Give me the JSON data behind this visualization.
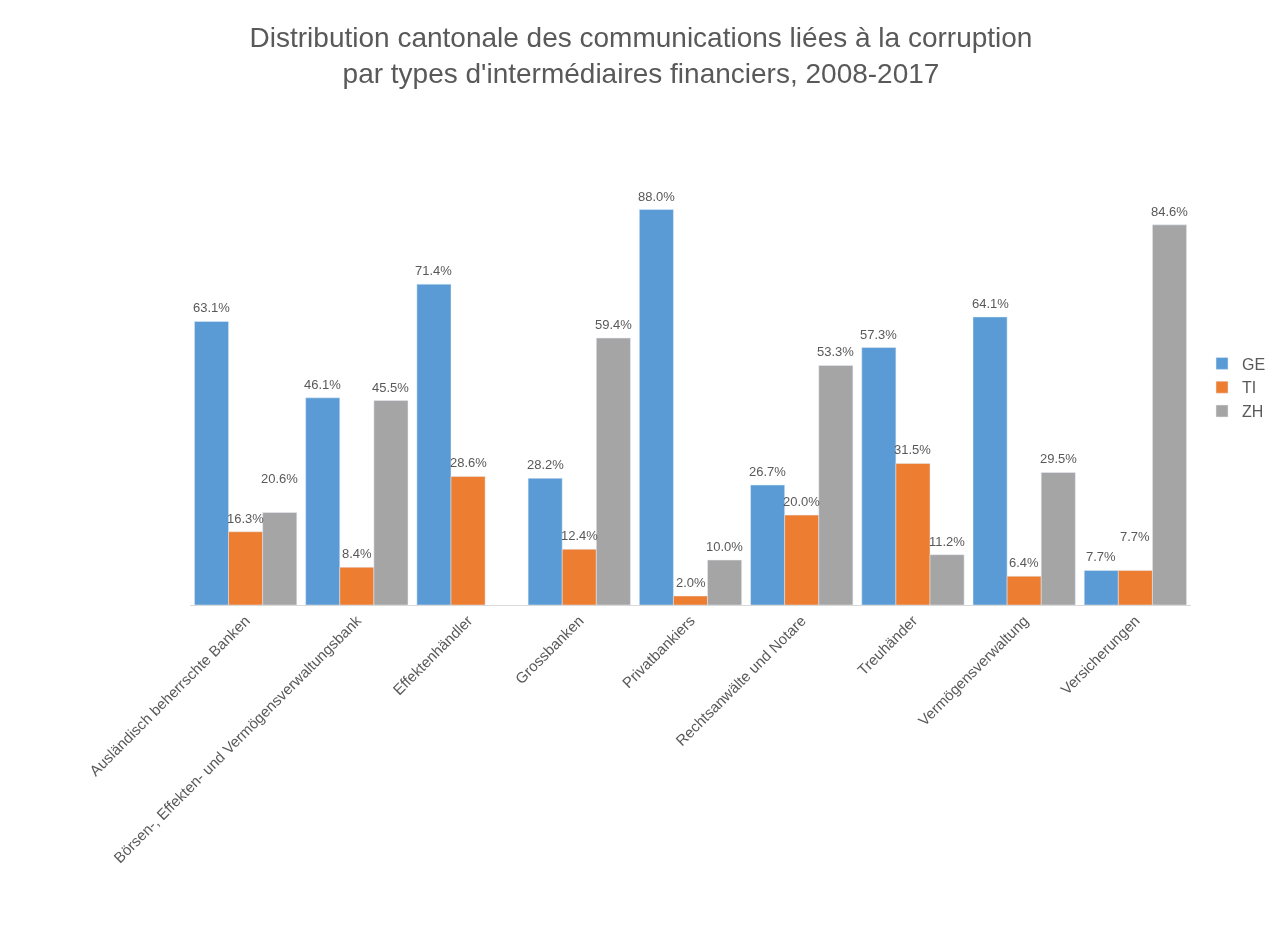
{
  "chart_data": {
    "type": "bar",
    "title": "Distribution cantonale des communications liées à la corruption\npar types d'intermédiaires financiers, 2008-2017",
    "categories": [
      "Ausländisch beherrschte Banken",
      "Börsen-, Effekten- und Vermögensverwaltungsbank",
      "Effektenhändler",
      "Grossbanken",
      "Privatbankiers",
      "Rechtsanwälte und Notare",
      "Treuhänder",
      "Vermögensverwaltung",
      "Versicherungen"
    ],
    "series": [
      {
        "name": "GE",
        "color": "#5b9bd5",
        "values": [
          63.1,
          46.1,
          71.4,
          28.2,
          88.0,
          26.7,
          57.3,
          64.1,
          7.7
        ],
        "value_labels": [
          "63.1%",
          "46.1%",
          "71.4%",
          "28.2%",
          "88.0%",
          "26.7%",
          "57.3%",
          "64.1%",
          "7.7%"
        ]
      },
      {
        "name": "TI",
        "color": "#ed7d31",
        "values": [
          16.3,
          8.4,
          28.6,
          12.4,
          2.0,
          20.0,
          31.5,
          6.4,
          7.7
        ],
        "value_labels": [
          "16.3%",
          "8.4%",
          "28.6%",
          "12.4%",
          "2.0%",
          "20.0%",
          "31.5%",
          "6.4%",
          "7.7%"
        ]
      },
      {
        "name": "ZH",
        "color": "#a5a5a5",
        "values": [
          20.6,
          45.5,
          null,
          59.4,
          10.0,
          53.3,
          11.2,
          29.5,
          84.6
        ],
        "value_labels": [
          "20.6%",
          "45.5%",
          null,
          "59.4%",
          "10.0%",
          "53.3%",
          "11.2%",
          "29.5%",
          "84.6%"
        ]
      }
    ],
    "legend": "right",
    "tick_labels": "x"
  }
}
